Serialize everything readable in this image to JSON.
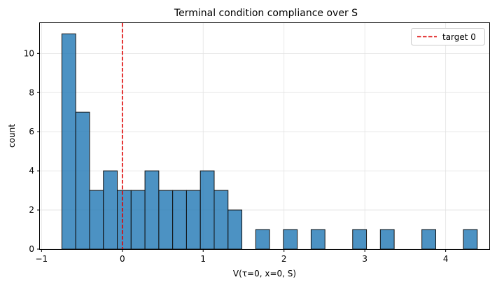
{
  "chart_data": {
    "type": "bar",
    "title": "Terminal condition compliance over S",
    "xlabel": "V(τ=0, x=0, S)",
    "ylabel": "count",
    "xlim": [
      -1.02,
      4.54
    ],
    "ylim": [
      0,
      11.55
    ],
    "xticks": [
      -1,
      0,
      1,
      2,
      3,
      4
    ],
    "yticks": [
      0,
      2,
      4,
      6,
      8,
      10
    ],
    "grid": true,
    "legend_position": "top-right",
    "bin_width": 0.1713,
    "bin_start": -0.748,
    "values": [
      11,
      7,
      3,
      4,
      3,
      3,
      4,
      3,
      3,
      3,
      4,
      3,
      2,
      0,
      1,
      0,
      1,
      0,
      1,
      0,
      0,
      1,
      0,
      1,
      0,
      0,
      1,
      0,
      0,
      1
    ],
    "bar_color": "#1f77b4",
    "reference_line": {
      "x": 0,
      "label": "target 0",
      "color": "#dd0000"
    }
  }
}
